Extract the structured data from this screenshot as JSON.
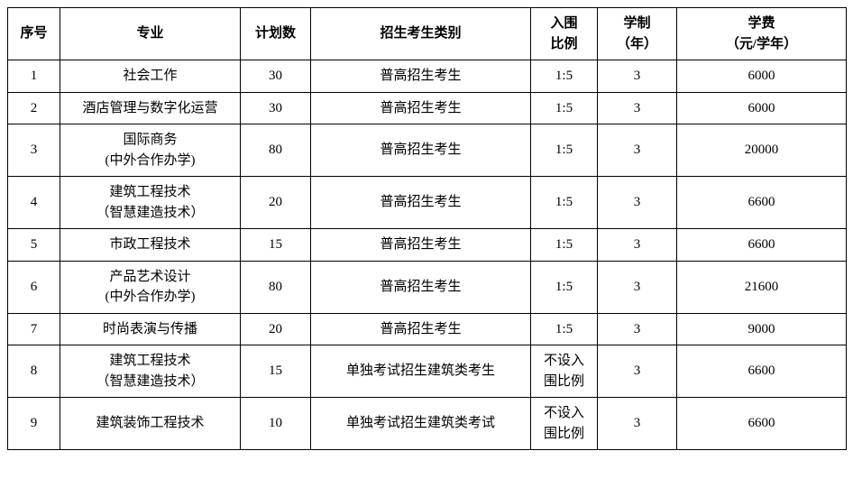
{
  "table": {
    "columns": [
      "序号",
      "专业",
      "计划数",
      "招生考生类别",
      "入围\n比例",
      "学制\n（年）",
      "学费\n（元/学年）"
    ],
    "rows": [
      [
        "1",
        "社会工作",
        "30",
        "普高招生考生",
        "1:5",
        "3",
        "6000"
      ],
      [
        "2",
        "酒店管理与数字化运营",
        "30",
        "普高招生考生",
        "1:5",
        "3",
        "6000"
      ],
      [
        "3",
        "国际商务\n(中外合作办学)",
        "80",
        "普高招生考生",
        "1:5",
        "3",
        "20000"
      ],
      [
        "4",
        "建筑工程技术\n（智慧建造技术）",
        "20",
        "普高招生考生",
        "1:5",
        "3",
        "6600"
      ],
      [
        "5",
        "市政工程技术",
        "15",
        "普高招生考生",
        "1:5",
        "3",
        "6600"
      ],
      [
        "6",
        "产品艺术设计\n(中外合作办学)",
        "80",
        "普高招生考生",
        "1:5",
        "3",
        "21600"
      ],
      [
        "7",
        "时尚表演与传播",
        "20",
        "普高招生考生",
        "1:5",
        "3",
        "9000"
      ],
      [
        "8",
        "建筑工程技术\n（智慧建造技术）",
        "15",
        "单独考试招生建筑类考生",
        "不设入\n围比例",
        "3",
        "6600"
      ],
      [
        "9",
        "建筑装饰工程技术",
        "10",
        "单独考试招生建筑类考试",
        "不设入\n围比例",
        "3",
        "6600"
      ]
    ]
  }
}
